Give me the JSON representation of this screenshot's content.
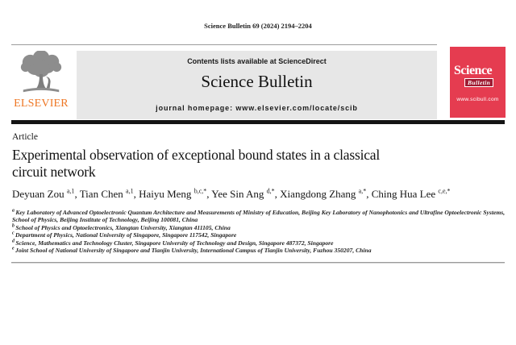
{
  "page": {
    "citation": "Science Bulletin 69 (2024) 2194–2204"
  },
  "header": {
    "contents_prefix": "Contents lists available at",
    "sciencedirect_label": "ScienceDirect",
    "journal_name": "Science Bulletin",
    "homepage_prefix": "journal homepage:",
    "homepage_url": "www.elsevier.com/locate/scib",
    "elsevier_logo_text": "ELSEVIER",
    "cover": {
      "title_word1": "Science",
      "title_word2": "Bulletin",
      "url": "www.scibull.com"
    }
  },
  "article": {
    "type_label": "Article",
    "title_lines": [
      "Experimental observation of exceptional bound states in a classical",
      "circuit network"
    ],
    "author_separator": ", ",
    "authors": [
      {
        "name": "Deyuan Zou",
        "sup": "a,1"
      },
      {
        "name": "Tian Chen",
        "sup": "a,1"
      },
      {
        "name": "Haiyu Meng",
        "sup": "b,c,*"
      },
      {
        "name": "Yee Sin Ang",
        "sup": "d,*"
      },
      {
        "name": "Xiangdong Zhang",
        "sup": "a,*"
      },
      {
        "name": "Ching Hua Lee",
        "sup": "c,e,*"
      }
    ],
    "affiliations": [
      {
        "sup": "a",
        "text": "Key Laboratory of Advanced Optoelectronic Quantum Architecture and Measurements of Ministry of Education, Beijing Key Laboratory of Nanophotonics and Ultrafine Optoelectronic Systems, School of Physics, Beijing Institute of Technology, Beijing 100081, China"
      },
      {
        "sup": "b",
        "text": "School of Physics and Optoelectronics, Xiangtan University, Xiangtan 411105, China"
      },
      {
        "sup": "c",
        "text": "Department of Physics, National University of Singapore, Singapore 117542, Singapore"
      },
      {
        "sup": "d",
        "text": "Science, Mathematics and Technology Cluster, Singapore University of Technology and Design, Singapore 487372, Singapore"
      },
      {
        "sup": "e",
        "text": "Joint School of National University of Singapore and Tianjin University, International Campus of Tianjin University, Fuzhou 350207, China"
      }
    ]
  },
  "colors": {
    "cover_red": "#e53c50",
    "cover_bulletin_bg": "#9e1b32",
    "elsevier_orange": "#ee7623",
    "masthead_gray": "#e7e7e7",
    "rule_black": "#141414"
  }
}
